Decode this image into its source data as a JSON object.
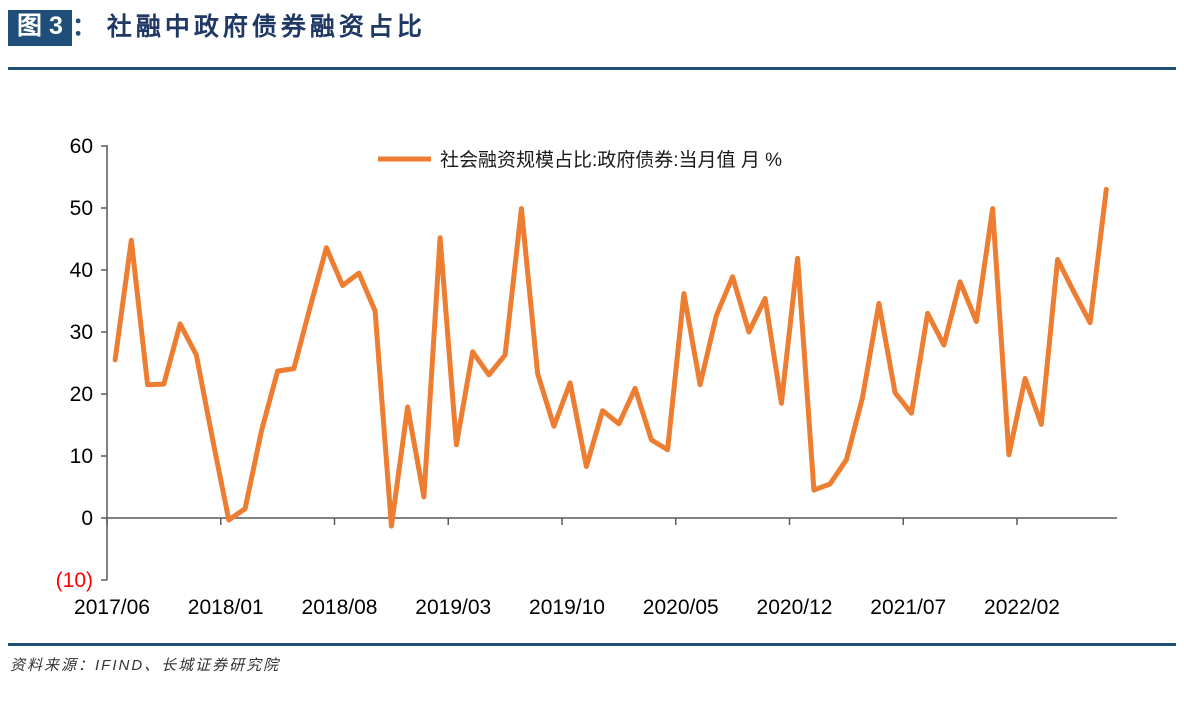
{
  "header": {
    "figure_label": "图 3",
    "colon": "：",
    "title": "社融中政府债券融资占比"
  },
  "legend": {
    "label": "社会融资规模占比:政府债券:当月值 月 %"
  },
  "footer": {
    "source": "资料来源：IFIND、长城证券研究院"
  },
  "colors": {
    "line": "#ED7D31",
    "title_blue": "#1F3864",
    "badge_blue": "#1F4E79",
    "divider_blue": "#1F4E79",
    "axis_gray": "#595959",
    "tick_label": "#000000",
    "negative_label_red": "#FF0000",
    "legend_text": "#1a1a1a"
  },
  "chart_data": {
    "type": "line",
    "title": "",
    "series_name": "社会融资规模占比:政府债券:当月值 月 %",
    "unit": "%",
    "grid": false,
    "legend_position": "top-center",
    "ylim": [
      -10,
      60
    ],
    "yticks": [
      60,
      50,
      40,
      30,
      20,
      10,
      0,
      -10
    ],
    "ytick_labels": [
      "60",
      "50",
      "40",
      "30",
      "20",
      "10",
      "0",
      "(10)"
    ],
    "xtick_labels": [
      "2017/06",
      "2018/01",
      "2018/08",
      "2019/03",
      "2019/10",
      "2020/05",
      "2020/12",
      "2021/07",
      "2022/02"
    ],
    "x": [
      "2017/06",
      "2017/07",
      "2017/08",
      "2017/09",
      "2017/10",
      "2017/11",
      "2017/12",
      "2018/01",
      "2018/02",
      "2018/03",
      "2018/04",
      "2018/05",
      "2018/06",
      "2018/07",
      "2018/08",
      "2018/09",
      "2018/10",
      "2018/11",
      "2018/12",
      "2019/01",
      "2019/02",
      "2019/03",
      "2019/04",
      "2019/05",
      "2019/06",
      "2019/07",
      "2019/08",
      "2019/09",
      "2019/10",
      "2019/11",
      "2019/12",
      "2020/01",
      "2020/02",
      "2020/03",
      "2020/04",
      "2020/05",
      "2020/06",
      "2020/07",
      "2020/08",
      "2020/09",
      "2020/10",
      "2020/11",
      "2020/12",
      "2021/01",
      "2021/02",
      "2021/03",
      "2021/04",
      "2021/05",
      "2021/06",
      "2021/07",
      "2021/08",
      "2021/09",
      "2021/10",
      "2021/11",
      "2021/12",
      "2022/01",
      "2022/02",
      "2022/03",
      "2022/04",
      "2022/05",
      "2022/06",
      "2022/07"
    ],
    "values": [
      25.5,
      44.8,
      21.5,
      21.6,
      31.3,
      26.3,
      12.7,
      -0.3,
      1.5,
      14.0,
      23.7,
      24.1,
      34.0,
      43.6,
      37.5,
      39.5,
      33.4,
      -1.3,
      17.9,
      3.4,
      45.2,
      11.8,
      26.8,
      23.1,
      26.3,
      49.9,
      23.3,
      14.8,
      21.8,
      8.3,
      17.3,
      15.2,
      20.9,
      12.6,
      11.0,
      36.2,
      21.5,
      32.7,
      38.9,
      30.0,
      35.4,
      18.5,
      41.9,
      4.5,
      5.5,
      9.4,
      19.5,
      34.6,
      20.2,
      16.9,
      33.0,
      27.9,
      38.1,
      31.7,
      49.9,
      10.2,
      22.5,
      15.1,
      41.7,
      36.5,
      31.5,
      53.0
    ]
  }
}
